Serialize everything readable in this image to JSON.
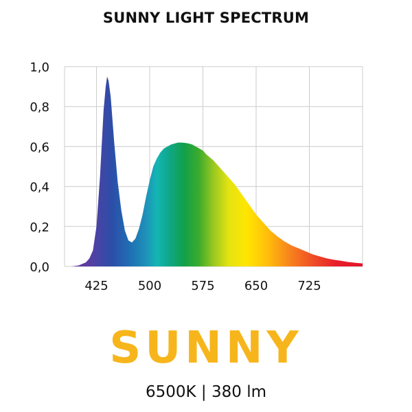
{
  "chart_data": {
    "type": "area",
    "title": "SUNNY LIGHT SPECTRUM",
    "xlabel": "",
    "ylabel": "",
    "xlim": [
      380,
      800
    ],
    "ylim": [
      0,
      1.0
    ],
    "x_ticks": [
      425,
      500,
      575,
      650,
      725
    ],
    "y_ticks": [
      0.0,
      0.2,
      0.4,
      0.6,
      0.8,
      1.0
    ],
    "y_tick_labels": [
      "0,0",
      "0,2",
      "0,4",
      "0,6",
      "0,8",
      "1,0"
    ],
    "grid": true,
    "fill": "visible-spectrum gradient",
    "series": [
      {
        "x": [
          380,
          390,
          400,
          410,
          415,
          420,
          425,
          430,
          435,
          438,
          440,
          442,
          445,
          450,
          455,
          460,
          465,
          470,
          475,
          480,
          485,
          490,
          495,
          500,
          505,
          510,
          515,
          520,
          525,
          530,
          535,
          540,
          545,
          550,
          555,
          560,
          565,
          570,
          575,
          580,
          585,
          590,
          595,
          600,
          610,
          620,
          630,
          640,
          650,
          660,
          670,
          680,
          690,
          700,
          710,
          720,
          730,
          740,
          750,
          760,
          770,
          780,
          790,
          800
        ],
        "values": [
          0.0,
          0.0,
          0.005,
          0.02,
          0.04,
          0.08,
          0.2,
          0.45,
          0.78,
          0.9,
          0.95,
          0.93,
          0.85,
          0.62,
          0.42,
          0.28,
          0.18,
          0.13,
          0.12,
          0.14,
          0.19,
          0.26,
          0.35,
          0.43,
          0.5,
          0.54,
          0.57,
          0.59,
          0.6,
          0.61,
          0.615,
          0.62,
          0.62,
          0.618,
          0.615,
          0.61,
          0.6,
          0.59,
          0.58,
          0.56,
          0.545,
          0.53,
          0.51,
          0.49,
          0.45,
          0.41,
          0.36,
          0.31,
          0.26,
          0.22,
          0.18,
          0.15,
          0.125,
          0.105,
          0.09,
          0.075,
          0.06,
          0.05,
          0.04,
          0.033,
          0.028,
          0.022,
          0.018,
          0.015
        ]
      }
    ]
  },
  "brand": "SUNNY",
  "specs": "6500K | 380 lm",
  "colors": {
    "brand": "#f7b51c",
    "grid": "#cccccc",
    "text": "#111111"
  }
}
